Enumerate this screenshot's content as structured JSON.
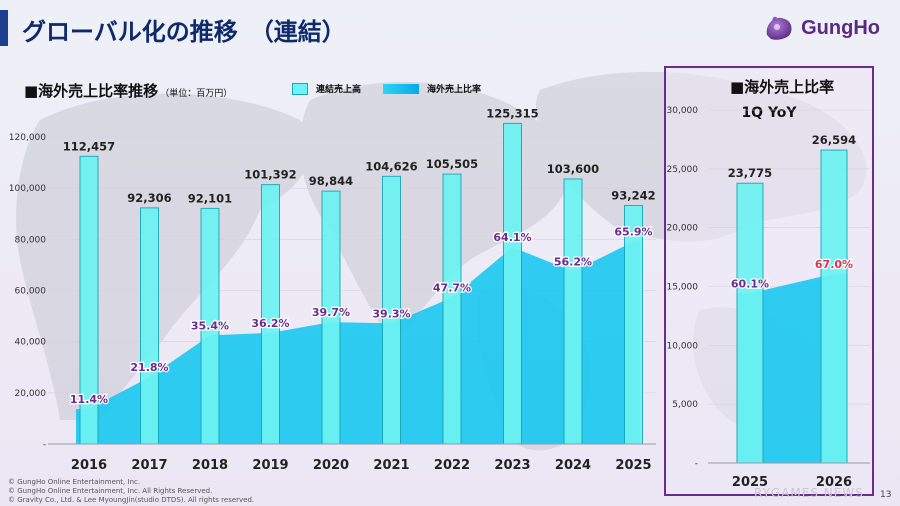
{
  "header": {
    "title": "グローバル化の推移　（連結）",
    "brand": "GungHo"
  },
  "left": {
    "heading": "■海外売上比率推移",
    "unit": "（単位：百万円）",
    "legend_bar": "連結売上高",
    "legend_area": "海外売上比率"
  },
  "right": {
    "heading": "■海外売上比率",
    "subheading": "1Q YoY"
  },
  "chart_data": [
    {
      "type": "bar",
      "categories": [
        "2016",
        "2017",
        "2018",
        "2019",
        "2020",
        "2021",
        "2022",
        "2023",
        "2024",
        "2025"
      ],
      "series": [
        {
          "name": "連結売上高",
          "values": [
            112457,
            92306,
            92101,
            101392,
            98844,
            104626,
            105505,
            125315,
            103600,
            93242
          ],
          "labels": [
            "112,457",
            "92,306",
            "92,101",
            "101,392",
            "98,844",
            "104,626",
            "105,505",
            "125,315",
            "103,600",
            "93,242"
          ]
        },
        {
          "name": "海外売上比率",
          "type": "area",
          "values": [
            11.4,
            21.8,
            35.4,
            36.2,
            39.7,
            39.3,
            47.7,
            64.1,
            56.2,
            65.9
          ],
          "labels": [
            "11.4%",
            "21.8%",
            "35.4%",
            "36.2%",
            "39.7%",
            "39.3%",
            "47.7%",
            "64.1%",
            "56.2%",
            "65.9%"
          ]
        }
      ],
      "yticks": [
        "120,000",
        "100,000",
        "80,000",
        "60,000",
        "40,000",
        "20,000",
        "-"
      ],
      "ylim": [
        0,
        120000
      ]
    },
    {
      "type": "bar",
      "categories": [
        "2025",
        "2026"
      ],
      "series": [
        {
          "name": "連結売上高",
          "values": [
            23775,
            26594
          ],
          "labels": [
            "23,775",
            "26,594"
          ]
        },
        {
          "name": "海外売上比率",
          "type": "area",
          "values": [
            60.1,
            67.0
          ],
          "labels": [
            "60.1%",
            "67.0%"
          ]
        }
      ],
      "yticks": [
        "30,000",
        "25,000",
        "20,000",
        "15,000",
        "10,000",
        "5,000",
        "-"
      ],
      "ylim": [
        0,
        30000
      ]
    }
  ],
  "footer": {
    "lines": [
      "© GungHo Online Entertainment, Inc.",
      "© GungHo Online Entertainment, Inc. All Rights Reserved.",
      "© Gravity Co., Ltd. & Lee MyoungJin(studio DTDS). All rights reserved."
    ],
    "watermark": "RYGAMES NEWS",
    "page": "13"
  },
  "colors": {
    "bar_fill": "#6cf3f3",
    "bar_stroke": "#16a7b8",
    "area_fill": "#19c8f0",
    "area_label": "#6a2a8e",
    "highlight_label": "#e0304a",
    "panel_border": "#6b2c91"
  }
}
